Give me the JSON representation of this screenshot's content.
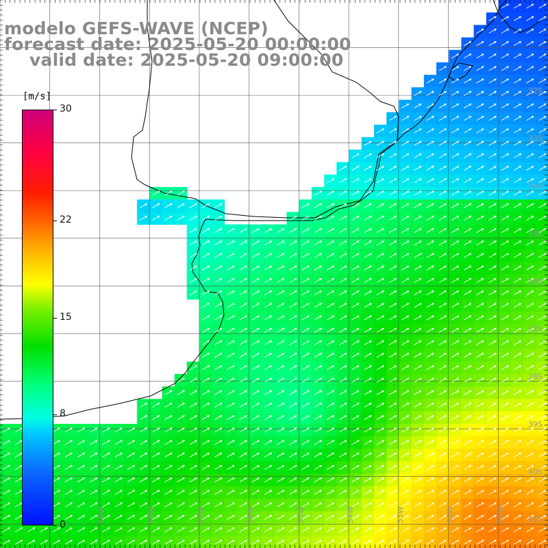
{
  "title": {
    "line1": "modelo GEFS-WAVE (NCEP)",
    "line2": "forecast date: 2025-05-20 00:00:00",
    "line3": "valid date: 2025-05-20 09:00:00"
  },
  "colorbar": {
    "unit": "[m/s]",
    "ticks": [
      "30",
      "22",
      "15",
      "8",
      "0"
    ],
    "tick_values": [
      30,
      22,
      15,
      8,
      0
    ],
    "range": [
      0,
      30
    ],
    "colors": [
      "#0010ff",
      "#00c8ff",
      "#00ff7a",
      "#00e000",
      "#ffff00",
      "#ff5a00",
      "#ff1e00",
      "#cc0077"
    ]
  },
  "map": {
    "lon_range": [
      -61,
      -50
    ],
    "lat_range": [
      -41.5,
      -30
    ],
    "lat_labels": [
      "32S",
      "33S",
      "34S",
      "35S",
      "36S",
      "37S",
      "38S",
      "39S",
      "40S",
      "41S"
    ],
    "lat_label_values": [
      -32,
      -33,
      -34,
      -35,
      -36,
      -37,
      -38,
      -39,
      -40,
      -41
    ],
    "lon_labels": [
      "60W",
      "59W",
      "58W",
      "57W",
      "56W",
      "55W",
      "54W",
      "53W",
      "52W",
      "51W"
    ],
    "lon_label_values": [
      -60,
      -59,
      -58,
      -57,
      -56,
      -55,
      -54,
      -53,
      -52,
      -51
    ],
    "wind_direction": "north-east",
    "colors": {
      "land": "#ffffff",
      "coast": "#000000",
      "grid": "#000000",
      "arrow": "#ffffff",
      "label": "#9a9a9a"
    }
  }
}
